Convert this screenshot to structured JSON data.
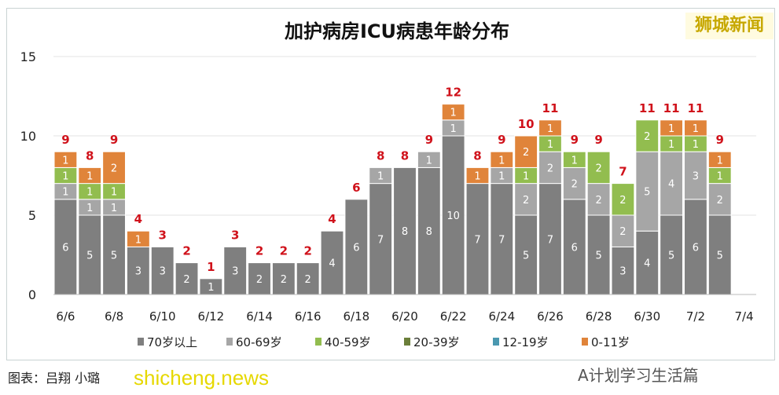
{
  "logo_text": "狮城新闻",
  "credit": "图表：吕翔 小璐",
  "watermark": "shicheng.news",
  "wechat": "A计划学习生活篇",
  "chart_data": {
    "type": "bar",
    "stacked": true,
    "title": "加护病房ICU病患年龄分布",
    "xlabel": "",
    "ylabel": "",
    "ylim": [
      0,
      15
    ],
    "yticks": [
      0,
      5,
      10,
      15
    ],
    "grid": true,
    "legend_position": "bottom",
    "categories": [
      "6/6",
      "6/7",
      "6/8",
      "6/9",
      "6/10",
      "6/11",
      "6/12",
      "6/13",
      "6/14",
      "6/15",
      "6/16",
      "6/17",
      "6/18",
      "6/19",
      "6/20",
      "6/21",
      "6/22",
      "6/23",
      "6/24",
      "6/25",
      "6/26",
      "6/27",
      "6/28",
      "6/29",
      "6/30",
      "7/1",
      "7/2",
      "7/3",
      "7/4"
    ],
    "xtick_labels": [
      "6/6",
      "6/8",
      "6/10",
      "6/12",
      "6/14",
      "6/16",
      "6/18",
      "6/20",
      "6/22",
      "6/24",
      "6/26",
      "6/28",
      "6/30",
      "7/2",
      "7/4"
    ],
    "series": [
      {
        "name": "70岁以上",
        "color": "#7f7f7f",
        "values": [
          6,
          5,
          5,
          3,
          3,
          2,
          1,
          3,
          2,
          2,
          2,
          4,
          6,
          7,
          8,
          8,
          10,
          7,
          7,
          5,
          7,
          6,
          5,
          3,
          4,
          5,
          6,
          5,
          0
        ]
      },
      {
        "name": "60-69岁",
        "color": "#a6a6a6",
        "values": [
          1,
          1,
          1,
          0,
          0,
          0,
          0,
          0,
          0,
          0,
          0,
          0,
          0,
          1,
          0,
          1,
          1,
          0,
          1,
          2,
          2,
          2,
          2,
          2,
          5,
          4,
          3,
          2,
          0
        ]
      },
      {
        "name": "40-59岁",
        "color": "#92bd4f",
        "values": [
          1,
          1,
          1,
          0,
          0,
          0,
          0,
          0,
          0,
          0,
          0,
          0,
          0,
          0,
          0,
          0,
          0,
          0,
          0,
          1,
          1,
          1,
          2,
          2,
          2,
          1,
          1,
          1,
          0
        ]
      },
      {
        "name": "20-39岁",
        "color": "#6b7f3a",
        "values": [
          0,
          0,
          0,
          0,
          0,
          0,
          0,
          0,
          0,
          0,
          0,
          0,
          0,
          0,
          0,
          0,
          0,
          0,
          0,
          0,
          0,
          0,
          0,
          0,
          0,
          0,
          0,
          0,
          0
        ]
      },
      {
        "name": "12-19岁",
        "color": "#4a98b0",
        "values": [
          0,
          0,
          0,
          0,
          0,
          0,
          0,
          0,
          0,
          0,
          0,
          0,
          0,
          0,
          0,
          0,
          0,
          0,
          0,
          0,
          0,
          0,
          0,
          0,
          0,
          0,
          0,
          0,
          0
        ]
      },
      {
        "name": "0-11岁",
        "color": "#e0843a",
        "values": [
          1,
          1,
          2,
          1,
          0,
          0,
          0,
          0,
          0,
          0,
          0,
          0,
          0,
          0,
          0,
          0,
          1,
          1,
          1,
          2,
          1,
          0,
          0,
          0,
          0,
          1,
          1,
          1,
          0
        ]
      }
    ],
    "totals": [
      9,
      8,
      9,
      4,
      3,
      2,
      1,
      3,
      2,
      2,
      2,
      4,
      6,
      8,
      8,
      9,
      12,
      8,
      9,
      10,
      11,
      9,
      9,
      7,
      11,
      11,
      11,
      9,
      null
    ],
    "total_label_color": "#d0121b"
  }
}
